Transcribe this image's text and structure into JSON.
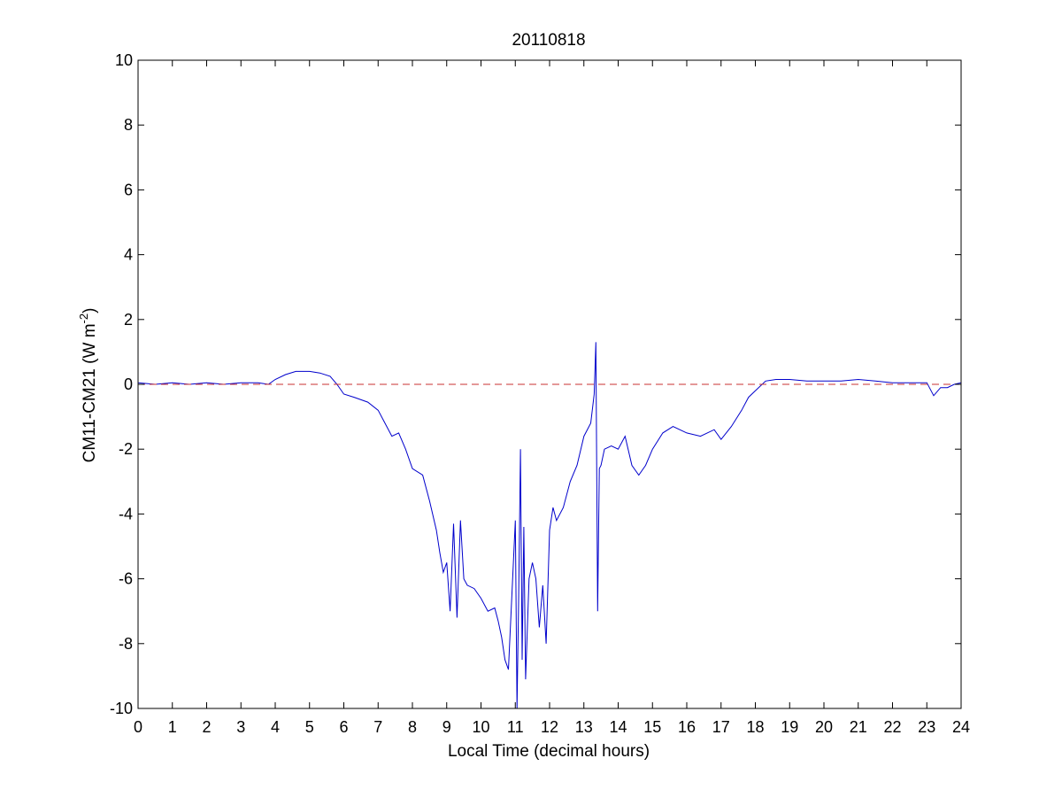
{
  "chart_data": {
    "type": "line",
    "title": "20110818",
    "xlabel": "Local Time (decimal hours)",
    "ylabel": {
      "main": "CM11-CM21 (W m",
      "superscript": "-2",
      "close": ")"
    },
    "xlim": [
      0,
      24
    ],
    "ylim": [
      -10,
      10
    ],
    "xticks": [
      0,
      1,
      2,
      3,
      4,
      5,
      6,
      7,
      8,
      9,
      10,
      11,
      12,
      13,
      14,
      15,
      16,
      17,
      18,
      19,
      20,
      21,
      22,
      23,
      24
    ],
    "yticks": [
      -10,
      -8,
      -6,
      -4,
      -2,
      0,
      2,
      4,
      6,
      8,
      10
    ],
    "grid": false,
    "legend": "none",
    "series": [
      {
        "color": "#0000cc",
        "style": "solid",
        "x": [
          0,
          0.5,
          1,
          1.5,
          2,
          2.5,
          3,
          3.5,
          3.8,
          4.0,
          4.3,
          4.6,
          5.0,
          5.3,
          5.6,
          5.8,
          6.0,
          6.3,
          6.7,
          7.0,
          7.2,
          7.4,
          7.6,
          7.8,
          8.0,
          8.3,
          8.5,
          8.7,
          8.8,
          8.9,
          9.0,
          9.1,
          9.2,
          9.3,
          9.4,
          9.5,
          9.6,
          9.8,
          10.0,
          10.2,
          10.4,
          10.5,
          10.6,
          10.7,
          10.8,
          10.9,
          11.0,
          11.05,
          11.1,
          11.15,
          11.2,
          11.25,
          11.3,
          11.4,
          11.5,
          11.6,
          11.7,
          11.8,
          11.9,
          12.0,
          12.1,
          12.2,
          12.4,
          12.6,
          12.8,
          13.0,
          13.2,
          13.3,
          13.35,
          13.4,
          13.45,
          13.5,
          13.6,
          13.8,
          14.0,
          14.2,
          14.4,
          14.6,
          14.8,
          15.0,
          15.3,
          15.6,
          16.0,
          16.4,
          16.8,
          17.0,
          17.3,
          17.6,
          17.8,
          18.0,
          18.3,
          18.6,
          19.0,
          19.5,
          20.0,
          20.5,
          21.0,
          21.5,
          22.0,
          22.5,
          23.0,
          23.2,
          23.4,
          23.6,
          23.8,
          24.0
        ],
        "y": [
          0.05,
          0.0,
          0.05,
          0.0,
          0.05,
          0.0,
          0.05,
          0.05,
          0.0,
          0.15,
          0.3,
          0.4,
          0.4,
          0.35,
          0.25,
          0.0,
          -0.3,
          -0.4,
          -0.55,
          -0.8,
          -1.2,
          -1.6,
          -1.5,
          -2.0,
          -2.6,
          -2.8,
          -3.6,
          -4.5,
          -5.2,
          -5.8,
          -5.5,
          -7.0,
          -4.3,
          -7.2,
          -4.2,
          -6.0,
          -6.2,
          -6.3,
          -6.6,
          -7.0,
          -6.9,
          -7.3,
          -7.8,
          -8.5,
          -8.8,
          -6.5,
          -4.2,
          -10.0,
          -6.5,
          -2.0,
          -8.5,
          -4.4,
          -9.1,
          -6.0,
          -5.5,
          -6.0,
          -7.5,
          -6.2,
          -8.0,
          -4.5,
          -3.8,
          -4.2,
          -3.8,
          -3.0,
          -2.5,
          -1.6,
          -1.2,
          -0.3,
          1.3,
          -7.0,
          -2.6,
          -2.5,
          -2.0,
          -1.9,
          -2.0,
          -1.6,
          -2.5,
          -2.8,
          -2.5,
          -2.0,
          -1.5,
          -1.3,
          -1.5,
          -1.6,
          -1.4,
          -1.7,
          -1.3,
          -0.8,
          -0.4,
          -0.2,
          0.1,
          0.15,
          0.15,
          0.1,
          0.1,
          0.1,
          0.15,
          0.1,
          0.05,
          0.05,
          0.05,
          -0.35,
          -0.1,
          -0.1,
          0.0,
          0.05
        ]
      },
      {
        "color": "#c83232",
        "style": "dashed",
        "x": [
          0,
          24
        ],
        "y": [
          0,
          0
        ]
      }
    ]
  }
}
